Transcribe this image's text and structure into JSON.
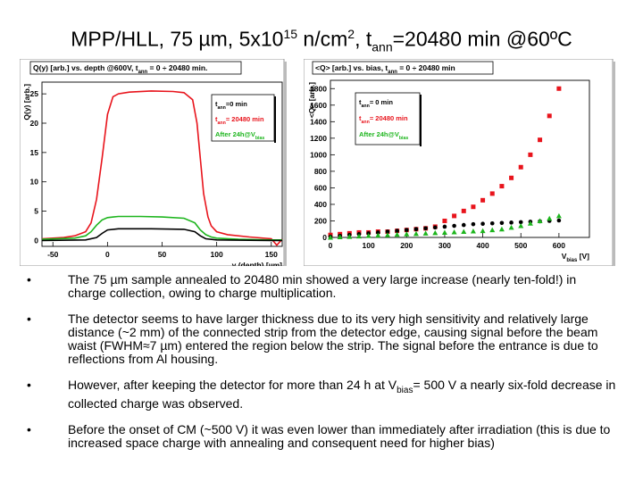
{
  "slide": {
    "title": {
      "part1": "MPP/HLL, 75 µm, 5x10",
      "exp": "15",
      "part2": " n/cm",
      "sq": "2",
      "part3": ", t",
      "sub": "ann",
      "part4": "=20480 min @60ºC"
    },
    "bullets": [
      {
        "dot": "•",
        "text": "The 75 µm sample annealed to 20480 min showed a very large increase (nearly ten-fold!) in charge collection, owing to charge multiplication."
      },
      {
        "dot": "•",
        "text": "The detector seems to have larger thickness due to its very high sensitivity and relatively large distance (~2 mm) of the connected strip from the detector edge, causing signal before the beam waist (FWHM≈7 µm) entered the region below the strip. The signal before the entrance is due to reflections from Al housing."
      },
      {
        "dot": "•",
        "text_a": "However, after keeping the detector for more than 24 h at V",
        "text_sub": "bias",
        "text_b": "= 500 V a nearly six-fold decrease in collected charge was observed."
      },
      {
        "dot": "•",
        "text": "Before the onset of CM (~500 V) it was even lower than immediately after irradiation (this is due to increased space charge with annealing and consequent need for higher bias)"
      }
    ]
  },
  "chart_data": [
    {
      "type": "line",
      "title": "Q(y) [arb.] vs. depth @600V, t",
      "title_sub": "ann",
      "title_rest": " = 0 ÷ 20480 min.",
      "ylabel": "Q(y) [arb.]",
      "xlabel": "y (depth) [µm]",
      "xlim": [
        -60,
        160
      ],
      "ylim": [
        -1,
        27
      ],
      "xticks": [
        -50,
        0,
        50,
        100,
        150
      ],
      "yticks": [
        0,
        5,
        10,
        15,
        20,
        25
      ],
      "legend": [
        {
          "label": "t",
          "sub": "ann",
          "rest": "=0 min",
          "color": "#000000"
        },
        {
          "label": "t",
          "sub": "ann",
          "rest": "= 20480 min",
          "color": "#e8141c"
        },
        {
          "label": "After 24h@V",
          "sub": "bias",
          "rest": "",
          "color": "#1db51d"
        }
      ],
      "series": [
        {
          "name": "tann=20480 min",
          "color": "#e8141c",
          "x": [
            -60,
            -40,
            -30,
            -20,
            -15,
            -10,
            -5,
            0,
            5,
            10,
            20,
            40,
            60,
            70,
            78,
            82,
            85,
            88,
            92,
            95,
            100,
            110,
            130,
            150,
            155,
            160
          ],
          "y": [
            0.3,
            0.5,
            0.8,
            1.5,
            3,
            7,
            14,
            21.5,
            24.5,
            25,
            25.3,
            25.5,
            25.4,
            25.2,
            24,
            20,
            14,
            8,
            4,
            2.5,
            1.5,
            1,
            0.6,
            0.3,
            -0.8,
            0.2
          ]
        },
        {
          "name": "After 24h@Vbias",
          "color": "#1db51d",
          "x": [
            -60,
            -30,
            -20,
            -15,
            -10,
            -5,
            0,
            10,
            30,
            50,
            70,
            80,
            85,
            90,
            95,
            100,
            120,
            150,
            160
          ],
          "y": [
            0.2,
            0.4,
            0.8,
            1.5,
            2.6,
            3.5,
            3.9,
            4.1,
            4.1,
            4.0,
            3.8,
            3.0,
            1.8,
            1.0,
            0.6,
            0.4,
            0.2,
            0.1,
            0.1
          ]
        },
        {
          "name": "tann=0 min",
          "color": "#000000",
          "x": [
            -60,
            -20,
            -10,
            -5,
            0,
            10,
            40,
            70,
            80,
            85,
            90,
            100,
            150,
            160
          ],
          "y": [
            0,
            0.1,
            0.5,
            1.2,
            1.8,
            2.0,
            2.0,
            1.9,
            1.5,
            0.8,
            0.3,
            0.1,
            0,
            0
          ]
        }
      ]
    },
    {
      "type": "scatter",
      "title": "<Q> [arb.] vs. bias, t",
      "title_sub": "ann",
      "title_rest": " = 0 ÷ 20480 min",
      "ylabel": "<Q> [arb.]",
      "xlabel": "V",
      "xlabel_sub": "bias",
      "xlabel_rest": " [V]",
      "xlim": [
        0,
        680
      ],
      "ylim": [
        0,
        1900
      ],
      "xticks": [
        0,
        100,
        200,
        300,
        400,
        500,
        600
      ],
      "yticks": [
        0,
        200,
        400,
        600,
        800,
        1000,
        1200,
        1400,
        1600,
        1800
      ],
      "legend": [
        {
          "label": "t",
          "sub": "ann",
          "rest": "= 0 min",
          "color": "#000000"
        },
        {
          "label": "t",
          "sub": "ann",
          "rest": "= 20480 min",
          "color": "#e8141c"
        },
        {
          "label": "After 24h@V",
          "sub": "bias",
          "rest": "",
          "color": "#1db51d"
        }
      ],
      "series": [
        {
          "name": "tann=20480 min",
          "marker": "square",
          "color": "#e8141c",
          "x": [
            0,
            25,
            50,
            75,
            100,
            125,
            150,
            175,
            200,
            225,
            250,
            275,
            300,
            325,
            350,
            375,
            400,
            425,
            450,
            475,
            500,
            525,
            550,
            575,
            600
          ],
          "y": [
            30,
            40,
            50,
            60,
            60,
            70,
            70,
            80,
            90,
            100,
            110,
            130,
            200,
            260,
            320,
            370,
            450,
            530,
            620,
            720,
            850,
            1000,
            1180,
            1470,
            1800
          ]
        },
        {
          "name": "tann=0 min",
          "marker": "circle",
          "color": "#000000",
          "x": [
            0,
            25,
            50,
            75,
            100,
            125,
            150,
            175,
            200,
            225,
            250,
            275,
            300,
            325,
            350,
            375,
            400,
            425,
            450,
            475,
            500,
            525,
            550,
            575,
            600
          ],
          "y": [
            10,
            20,
            30,
            40,
            50,
            60,
            70,
            80,
            90,
            100,
            110,
            120,
            130,
            140,
            150,
            160,
            165,
            170,
            175,
            180,
            185,
            190,
            195,
            200,
            205
          ]
        },
        {
          "name": "After 24h@Vbias",
          "marker": "triangle",
          "color": "#1db51d",
          "x": [
            0,
            25,
            50,
            75,
            100,
            125,
            150,
            175,
            200,
            225,
            250,
            275,
            300,
            325,
            350,
            375,
            400,
            425,
            450,
            475,
            500,
            525,
            550,
            575,
            600
          ],
          "y": [
            0,
            5,
            10,
            15,
            20,
            25,
            30,
            35,
            40,
            45,
            50,
            55,
            60,
            65,
            70,
            75,
            80,
            90,
            100,
            120,
            140,
            170,
            200,
            230,
            260
          ]
        }
      ]
    }
  ]
}
